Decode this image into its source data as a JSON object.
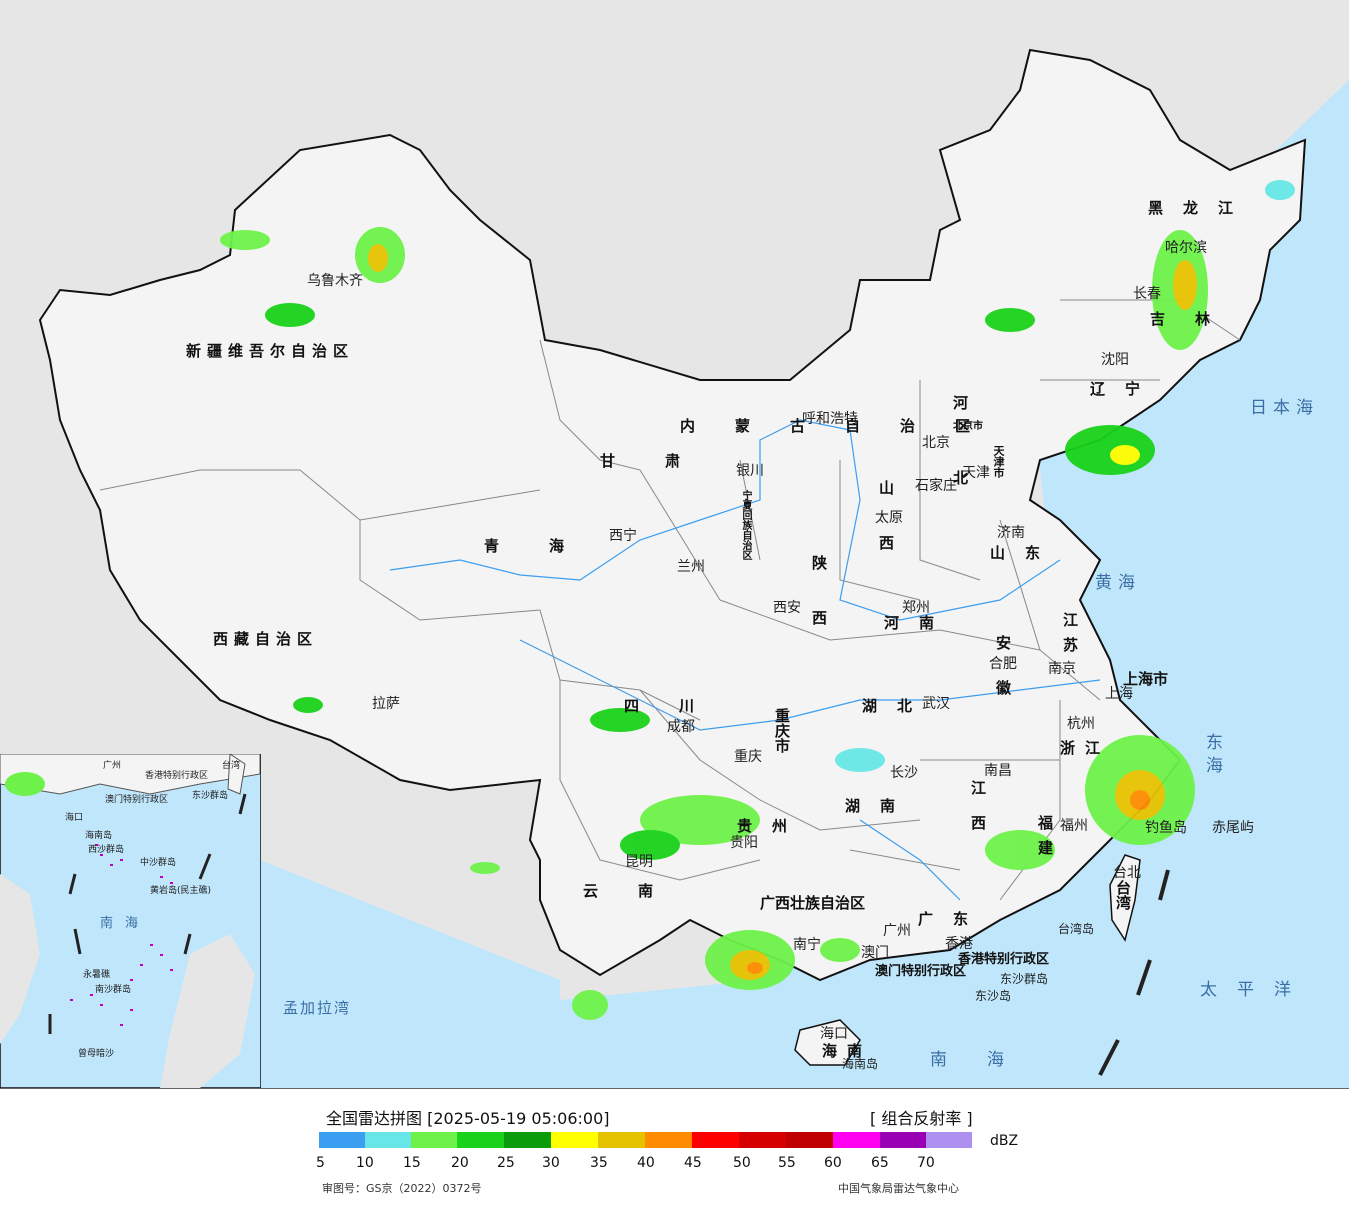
{
  "map": {
    "sea_color": "#bfe6fb",
    "land_color": "#f4f4f4",
    "outside_color": "#e6e6e6",
    "cities": [
      "乌鲁木齐",
      "拉萨",
      "西宁",
      "兰州",
      "银川",
      "成都",
      "重庆",
      "昆明",
      "贵阳",
      "南宁",
      "广州",
      "海口",
      "呼和浩特",
      "北京",
      "天津",
      "石家庄",
      "太原",
      "济南",
      "郑州",
      "西安",
      "武汉",
      "长沙",
      "南昌",
      "合肥",
      "南京",
      "上海",
      "杭州",
      "福州",
      "台北",
      "哈尔滨",
      "长春",
      "沈阳",
      "澳门",
      "香港",
      "钓鱼岛",
      "赤尾屿"
    ],
    "provinces": [
      "新疆维吾尔自治区",
      "西藏自治区",
      "青海",
      "甘肃",
      "内蒙古自治区",
      "宁夏回族自治区",
      "四川",
      "云南",
      "贵州",
      "广西壮族自治区",
      "广东",
      "海南",
      "重庆市",
      "陕西",
      "山西",
      "河北",
      "北京市",
      "天津市",
      "山东",
      "河南",
      "湖北",
      "湖南",
      "江西",
      "安徽",
      "江苏",
      "上海市",
      "浙江",
      "福建",
      "台湾",
      "辽宁",
      "吉林",
      "黑龙江",
      "香港特别行政区",
      "澳门特别行政区",
      "东沙群岛",
      "台湾岛",
      "海南岛",
      "东沙岛"
    ],
    "seas": [
      "日本海",
      "黄海",
      "东海",
      "南海",
      "太平洋",
      "孟加拉湾"
    ],
    "inset": {
      "seas": [
        "南",
        "海"
      ],
      "labels": [
        "广州",
        "香港特别行政区",
        "澳门特别行政区",
        "台湾",
        "东沙群岛",
        "海口",
        "海南岛",
        "西沙群岛",
        "中沙群岛",
        "黄岩岛(民主礁)",
        "永暑礁",
        "南沙群岛",
        "曾母暗沙"
      ]
    }
  },
  "legend": {
    "title": "全国雷达拼图 [2025-05-19 05:06:00]",
    "product": "[ 组合反射率 ]",
    "unit": "dBZ",
    "colors": [
      "#3c9ef0",
      "#66e6e6",
      "#6ef24a",
      "#19d219",
      "#0a9c0a",
      "#ffff00",
      "#e6c300",
      "#ff8c00",
      "#ff0000",
      "#d60000",
      "#c00000",
      "#ff00f0",
      "#9900b4",
      "#ad90f0"
    ],
    "ticks": [
      "5",
      "10",
      "15",
      "20",
      "25",
      "30",
      "35",
      "40",
      "45",
      "50",
      "55",
      "60",
      "65",
      "70"
    ],
    "review_no": "审图号：GS京（2022）0372号",
    "source": "中国气象局雷达气象中心"
  }
}
